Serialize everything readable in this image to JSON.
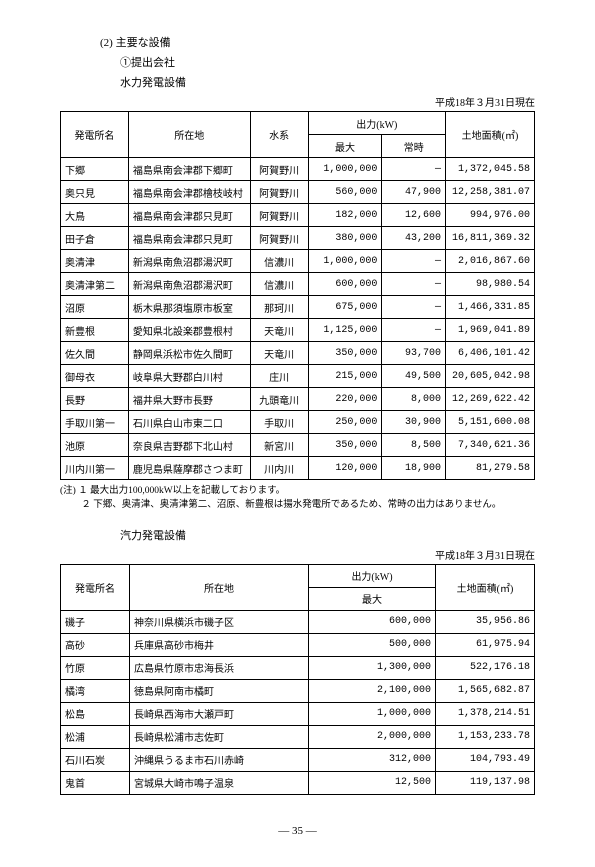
{
  "headings": {
    "main": "(2) 主要な設備",
    "sub1": "①提出会社",
    "hydro_title": "水力発電設備",
    "thermal_title": "汽力発電設備"
  },
  "date_note": "平成18年３月31日現在",
  "hydro": {
    "headers": {
      "plant": "発電所名",
      "location": "所在地",
      "river": "水系",
      "output": "出力(kW)",
      "max": "最大",
      "regular": "常時",
      "area": "土地面積(㎡)"
    },
    "rows": [
      {
        "plant": "下郷",
        "loc": "福島県南会津郡下郷町",
        "river": "阿賀野川",
        "max": "1,000,000",
        "reg": "―",
        "area": "1,372,045.58"
      },
      {
        "plant": "奥只見",
        "loc": "福島県南会津郡檜枝岐村",
        "river": "阿賀野川",
        "max": "560,000",
        "reg": "47,900",
        "area": "12,258,381.07"
      },
      {
        "plant": "大鳥",
        "loc": "福島県南会津郡只見町",
        "river": "阿賀野川",
        "max": "182,000",
        "reg": "12,600",
        "area": "994,976.00"
      },
      {
        "plant": "田子倉",
        "loc": "福島県南会津郡只見町",
        "river": "阿賀野川",
        "max": "380,000",
        "reg": "43,200",
        "area": "16,811,369.32"
      },
      {
        "plant": "奥清津",
        "loc": "新潟県南魚沼郡湯沢町",
        "river": "信濃川",
        "max": "1,000,000",
        "reg": "―",
        "area": "2,016,867.60"
      },
      {
        "plant": "奥清津第二",
        "loc": "新潟県南魚沼郡湯沢町",
        "river": "信濃川",
        "max": "600,000",
        "reg": "―",
        "area": "98,980.54"
      },
      {
        "plant": "沼原",
        "loc": "栃木県那須塩原市板室",
        "river": "那珂川",
        "max": "675,000",
        "reg": "―",
        "area": "1,466,331.85"
      },
      {
        "plant": "新豊根",
        "loc": "愛知県北設楽郡豊根村",
        "river": "天竜川",
        "max": "1,125,000",
        "reg": "―",
        "area": "1,969,041.89"
      },
      {
        "plant": "佐久間",
        "loc": "静岡県浜松市佐久間町",
        "river": "天竜川",
        "max": "350,000",
        "reg": "93,700",
        "area": "6,406,101.42"
      },
      {
        "plant": "御母衣",
        "loc": "岐阜県大野郡白川村",
        "river": "庄川",
        "max": "215,000",
        "reg": "49,500",
        "area": "20,605,042.98"
      },
      {
        "plant": "長野",
        "loc": "福井県大野市長野",
        "river": "九頭竜川",
        "max": "220,000",
        "reg": "8,000",
        "area": "12,269,622.42"
      },
      {
        "plant": "手取川第一",
        "loc": "石川県白山市東二口",
        "river": "手取川",
        "max": "250,000",
        "reg": "30,900",
        "area": "5,151,600.08"
      },
      {
        "plant": "池原",
        "loc": "奈良県吉野郡下北山村",
        "river": "新宮川",
        "max": "350,000",
        "reg": "8,500",
        "area": "7,340,621.36"
      },
      {
        "plant": "川内川第一",
        "loc": "鹿児島県薩摩郡さつま町",
        "river": "川内川",
        "max": "120,000",
        "reg": "18,900",
        "area": "81,279.58"
      }
    ]
  },
  "notes": {
    "n1_label": "(注) １",
    "n1": "最大出力100,000kW以上を記載しております。",
    "n2_label": "　　 ２",
    "n2": "下郷、奥清津、奥清津第二、沼原、新豊根は揚水発電所であるため、常時の出力はありません。"
  },
  "thermal": {
    "headers": {
      "plant": "発電所名",
      "location": "所在地",
      "output": "出力(kW)",
      "max": "最大",
      "area": "土地面積(㎡)"
    },
    "rows": [
      {
        "plant": "磯子",
        "loc": "神奈川県横浜市磯子区",
        "max": "600,000",
        "area": "35,956.86"
      },
      {
        "plant": "高砂",
        "loc": "兵庫県高砂市梅井",
        "max": "500,000",
        "area": "61,975.94"
      },
      {
        "plant": "竹原",
        "loc": "広島県竹原市忠海長浜",
        "max": "1,300,000",
        "area": "522,176.18"
      },
      {
        "plant": "橘湾",
        "loc": "徳島県阿南市橘町",
        "max": "2,100,000",
        "area": "1,565,682.87"
      },
      {
        "plant": "松島",
        "loc": "長崎県西海市大瀬戸町",
        "max": "1,000,000",
        "area": "1,378,214.51"
      },
      {
        "plant": "松浦",
        "loc": "長崎県松浦市志佐町",
        "max": "2,000,000",
        "area": "1,153,233.78"
      },
      {
        "plant": "石川石炭",
        "loc": "沖縄県うるま市石川赤崎",
        "max": "312,000",
        "area": "104,793.49"
      },
      {
        "plant": "鬼首",
        "loc": "宮城県大崎市鳴子温泉",
        "max": "12,500",
        "area": "119,137.98"
      }
    ]
  },
  "page_number": "― 35 ―"
}
